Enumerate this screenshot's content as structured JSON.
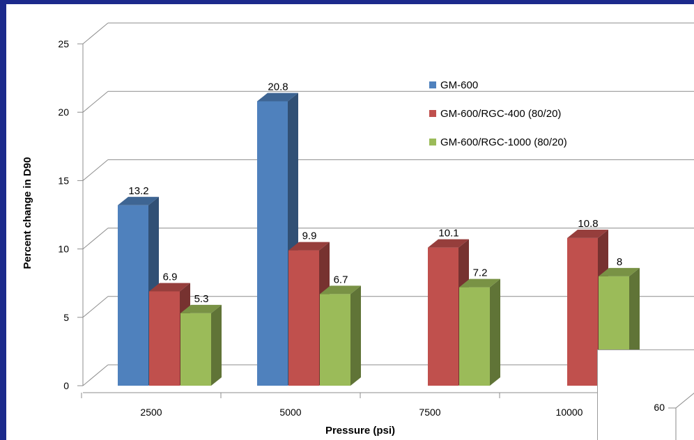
{
  "chart_data": {
    "type": "bar",
    "style": "3d-clustered-column",
    "categories": [
      "2500",
      "5000",
      "7500",
      "10000"
    ],
    "series": [
      {
        "name": "GM-600",
        "color": "#4f81bd",
        "values": [
          13.2,
          20.8,
          null,
          null
        ]
      },
      {
        "name": "GM-600/RGC-400 (80/20)",
        "color": "#c0504d",
        "values": [
          6.9,
          9.9,
          10.1,
          10.8
        ]
      },
      {
        "name": "GM-600/RGC-1000 (80/20)",
        "color": "#9bbb59",
        "values": [
          5.3,
          6.7,
          7.2,
          8
        ]
      }
    ],
    "data_labels": [
      [
        "13.2",
        "20.8",
        null,
        null
      ],
      [
        "6.9",
        "9.9",
        "10.1",
        "10.8"
      ],
      [
        "5.3",
        "6.7",
        "7.2",
        "8"
      ]
    ],
    "xlabel": "Pressure (psi)",
    "ylabel": "Percent change in D90",
    "ylim": [
      0,
      25
    ],
    "yticks": [
      0,
      5,
      10,
      15,
      20,
      25
    ],
    "grid": true,
    "legend_position": "top-right"
  },
  "inset": {
    "tick_label": "60"
  }
}
